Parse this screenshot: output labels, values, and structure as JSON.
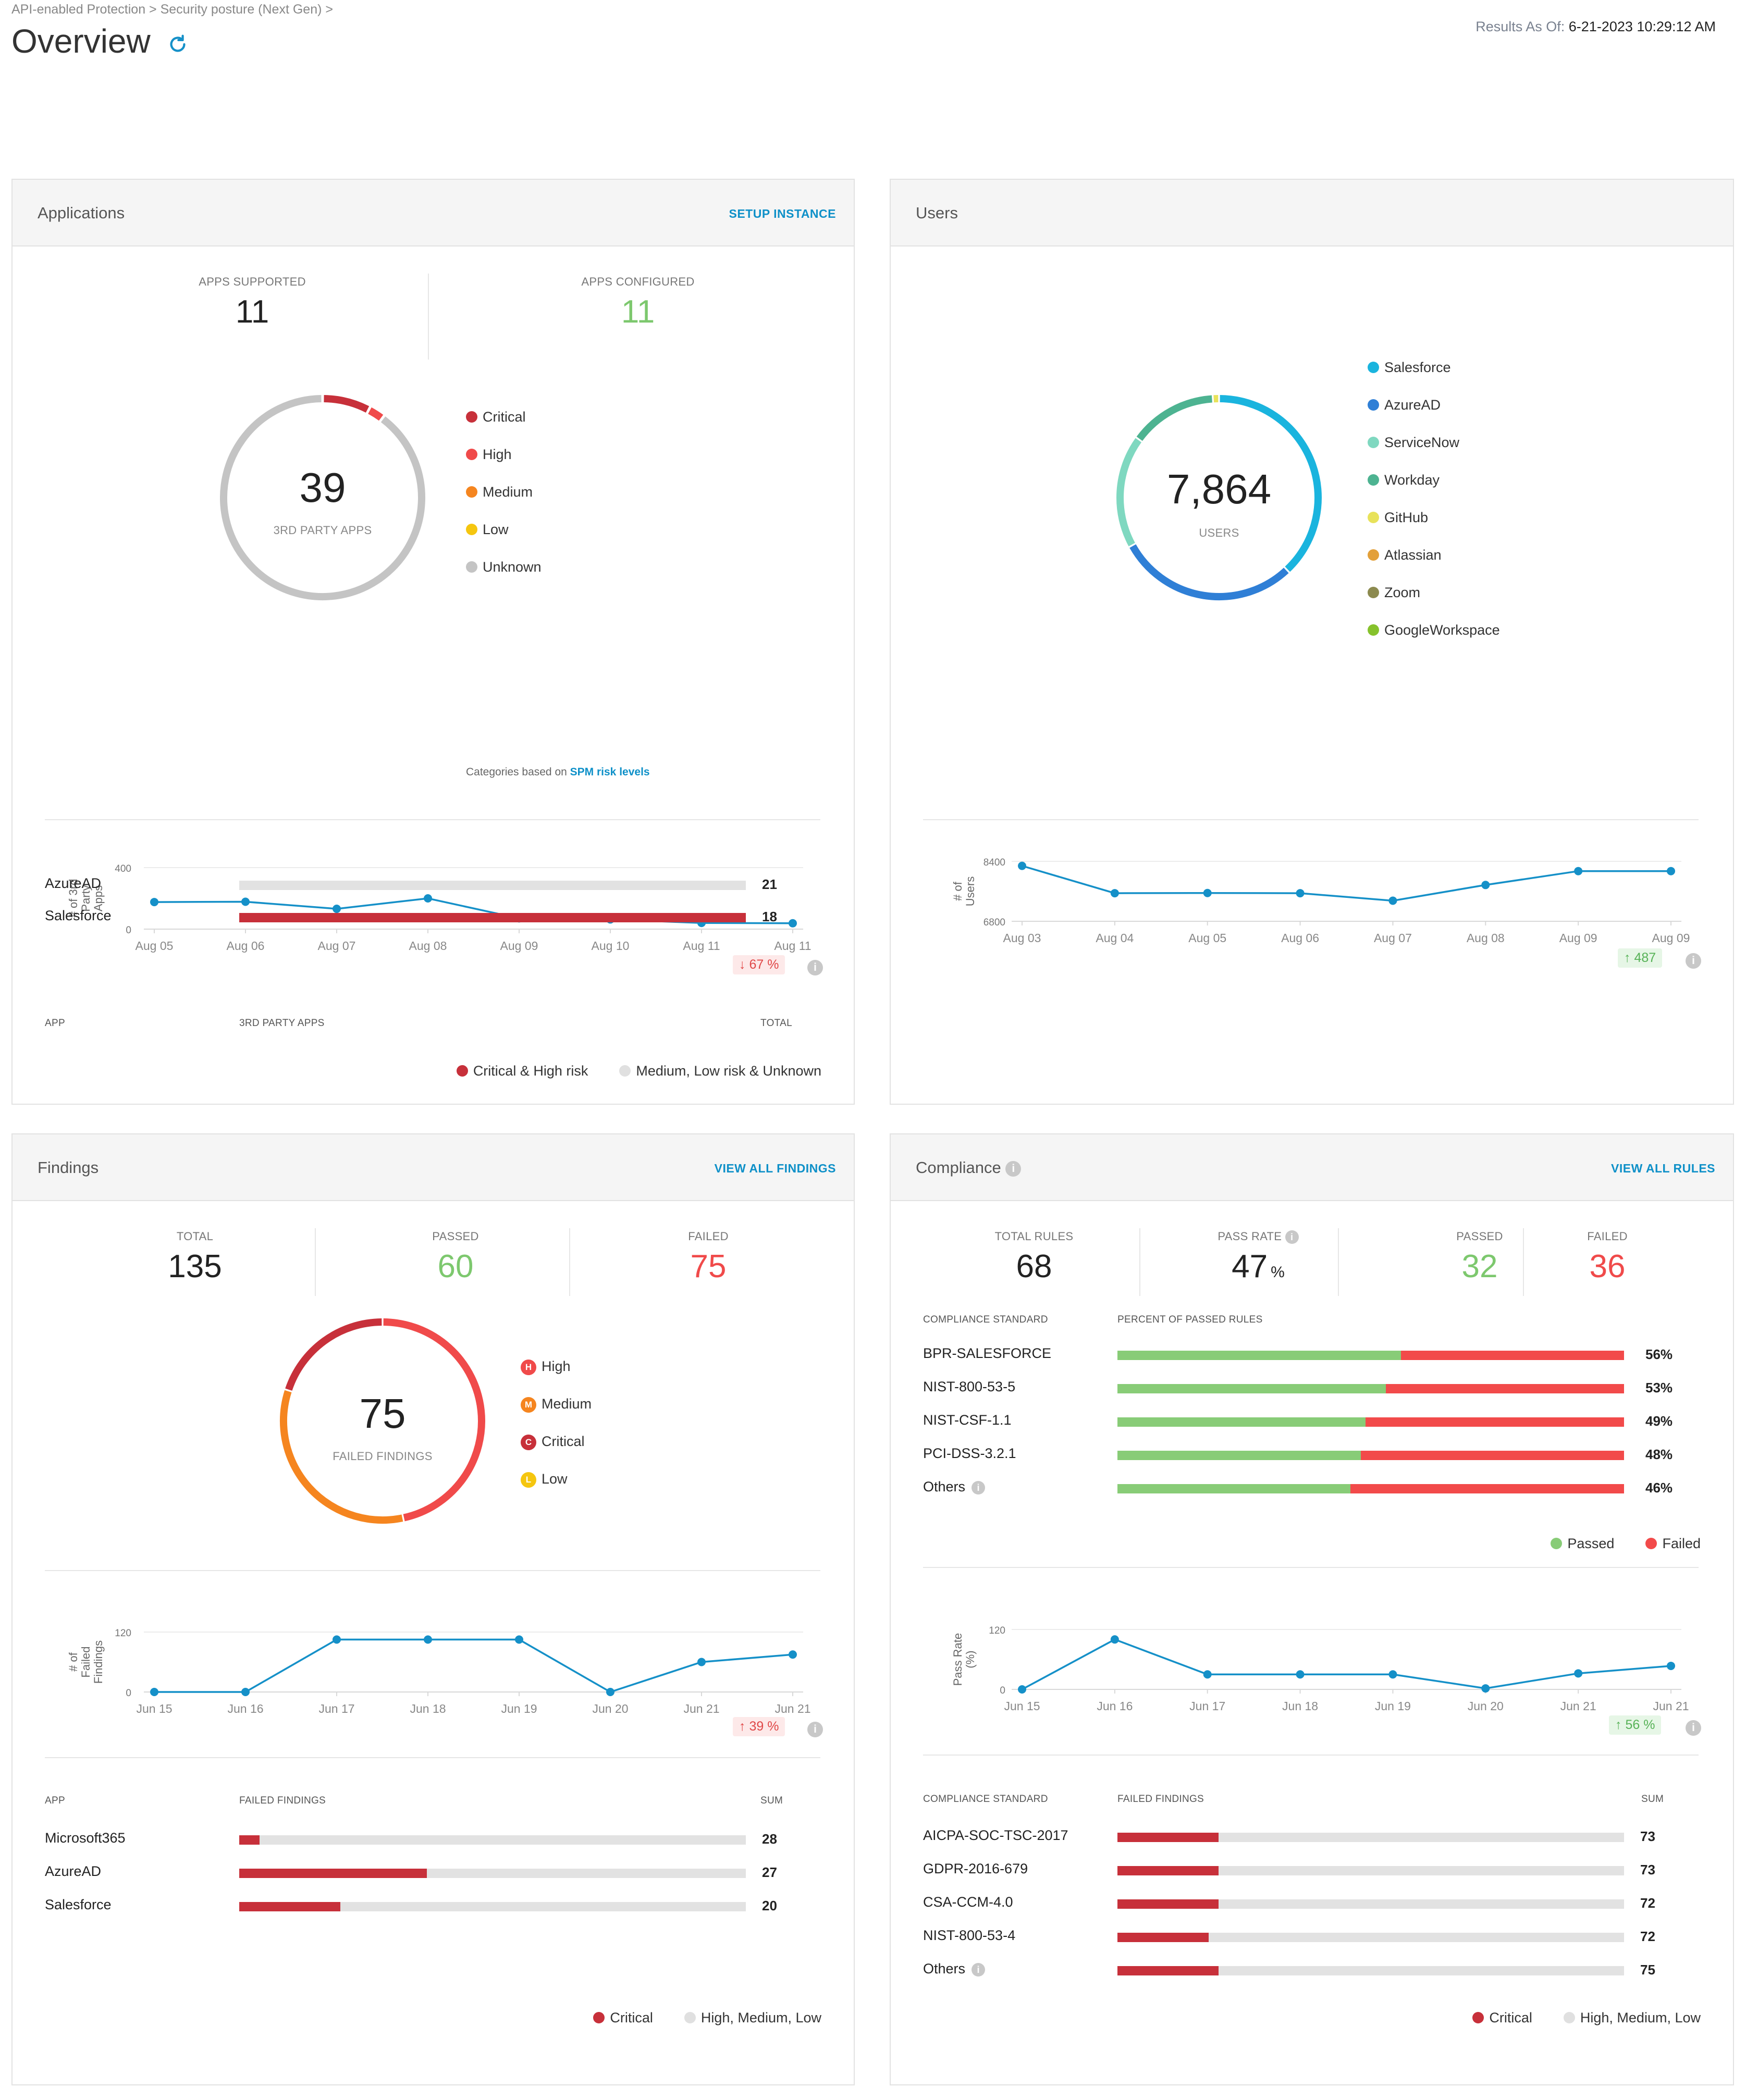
{
  "header": {
    "breadcrumb": "API-enabled Protection > Security posture (Next Gen) >",
    "title": "Overview",
    "results_label": "Results As Of:",
    "results_value": "6-21-2023 10:29:12 AM"
  },
  "applications": {
    "title": "Applications",
    "link": "SETUP INSTANCE",
    "apps_supported_label": "APPS SUPPORTED",
    "apps_supported": "11",
    "apps_configured_label": "APPS CONFIGURED",
    "apps_configured": "11",
    "donut_value": "39",
    "donut_label": "3RD PARTY APPS",
    "donut_segments": [
      {
        "name": "Critical",
        "value": 3,
        "color": "#c7303a"
      },
      {
        "name": "High",
        "value": 1,
        "color": "#f04a4a"
      },
      {
        "name": "Unknown",
        "value": 35,
        "color": "#c4c4c4"
      }
    ],
    "legend": [
      {
        "label": "Critical",
        "color": "#c7303a"
      },
      {
        "label": "High",
        "color": "#f04a4a"
      },
      {
        "label": "Medium",
        "color": "#f5851f"
      },
      {
        "label": "Low",
        "color": "#f5c60f"
      },
      {
        "label": "Unknown",
        "color": "#c4c4c4"
      }
    ],
    "note_prefix": "Categories based on",
    "note_link": "SPM risk levels",
    "chart_data": {
      "type": "line",
      "ylabel": "# of 3rd Party Apps",
      "ylim": [
        0,
        400
      ],
      "yticks": [
        "400",
        "0"
      ],
      "x": [
        "Aug 05",
        "Aug 06",
        "Aug 07",
        "Aug 08",
        "Aug 09",
        "Aug 10",
        "Aug 11",
        "Aug 11"
      ],
      "values": [
        176,
        178,
        132,
        200,
        70,
        63,
        40,
        38
      ]
    },
    "trend": "67 %",
    "table_headers": {
      "app": "APP",
      "bar": "3RD PARTY APPS",
      "total": "TOTAL"
    },
    "rows": [
      {
        "app": "AzureAD",
        "total": "21",
        "fraction": 0
      },
      {
        "app": "Salesforce",
        "total": "18",
        "fraction": 1
      }
    ],
    "footer_legend": [
      {
        "label": "Critical & High risk",
        "color": "#c7303a"
      },
      {
        "label": "Medium, Low risk & Unknown",
        "color": "#e0e0e0"
      }
    ]
  },
  "users": {
    "title": "Users",
    "donut_value": "7,864",
    "donut_label": "USERS",
    "donut_segments": [
      {
        "name": "Salesforce",
        "value": 38,
        "color": "#1ab4de"
      },
      {
        "name": "AzureAD",
        "value": 29,
        "color": "#2f7fd6"
      },
      {
        "name": "ServiceNow",
        "value": 18,
        "color": "#7fd8c0"
      },
      {
        "name": "Workday",
        "value": 14,
        "color": "#4db391"
      },
      {
        "name": "GitHub",
        "value": 1,
        "color": "#e8e25a"
      }
    ],
    "legend": [
      {
        "label": "Salesforce",
        "color": "#1ab4de"
      },
      {
        "label": "AzureAD",
        "color": "#2f7fd6"
      },
      {
        "label": "ServiceNow",
        "color": "#7fd8c0"
      },
      {
        "label": "Workday",
        "color": "#4db391"
      },
      {
        "label": "GitHub",
        "color": "#e8e25a"
      },
      {
        "label": "Atlassian",
        "color": "#e3a03a"
      },
      {
        "label": "Zoom",
        "color": "#8c8a4f"
      },
      {
        "label": "GoogleWorkspace",
        "color": "#86c22c"
      }
    ],
    "chart_data": {
      "type": "line",
      "ylabel": "# of Users",
      "ylim": [
        6800,
        8400
      ],
      "yticks": [
        "8400",
        "6800"
      ],
      "x": [
        "Aug 03",
        "Aug 04",
        "Aug 05",
        "Aug 06",
        "Aug 07",
        "Aug 08",
        "Aug 09",
        "Aug 09"
      ],
      "values": [
        8280,
        7550,
        7555,
        7550,
        7350,
        7770,
        8140,
        8140
      ]
    },
    "trend": "487"
  },
  "findings": {
    "title": "Findings",
    "link": "VIEW ALL FINDINGS",
    "total_label": "TOTAL",
    "total": "135",
    "passed_label": "PASSED",
    "passed": "60",
    "failed_label": "FAILED",
    "failed": "75",
    "donut_value": "75",
    "donut_label": "FAILED FINDINGS",
    "donut_segments": [
      {
        "name": "High",
        "value": 35,
        "color": "#f04a4a"
      },
      {
        "name": "Medium",
        "value": 25,
        "color": "#f5851f"
      },
      {
        "name": "Critical",
        "value": 15,
        "color": "#c7303a"
      }
    ],
    "legend": [
      {
        "label": "High",
        "letter": "H",
        "color": "#f04a4a"
      },
      {
        "label": "Medium",
        "letter": "M",
        "color": "#f5851f"
      },
      {
        "label": "Critical",
        "letter": "C",
        "color": "#c7303a"
      },
      {
        "label": "Low",
        "letter": "L",
        "color": "#f5c60f"
      }
    ],
    "chart_data": {
      "type": "line",
      "ylabel": "# of Failed Findings",
      "ylim": [
        0,
        120
      ],
      "yticks": [
        "120",
        "0"
      ],
      "x": [
        "Jun 15",
        "Jun 16",
        "Jun 17",
        "Jun 18",
        "Jun 19",
        "Jun 20",
        "Jun 21",
        "Jun 21"
      ],
      "values": [
        0,
        0,
        105,
        105,
        105,
        0,
        60,
        75
      ]
    },
    "trend": "39 %",
    "table_headers": {
      "app": "APP",
      "bar": "FAILED FINDINGS",
      "total": "SUM"
    },
    "rows": [
      {
        "app": "Microsoft365",
        "total": "28",
        "fraction": 0.04
      },
      {
        "app": "AzureAD",
        "total": "27",
        "fraction": 0.37
      },
      {
        "app": "Salesforce",
        "total": "20",
        "fraction": 0.2
      }
    ],
    "footer_legend": [
      {
        "label": "Critical",
        "color": "#c7303a"
      },
      {
        "label": "High, Medium, Low",
        "color": "#e0e0e0"
      }
    ]
  },
  "compliance": {
    "title": "Compliance",
    "link": "VIEW ALL RULES",
    "total_label": "TOTAL RULES",
    "total": "68",
    "pass_rate_label": "PASS RATE",
    "pass_rate": "47",
    "pass_rate_unit": "%",
    "passed_label": "PASSED",
    "passed": "32",
    "failed_label": "FAILED",
    "failed": "36",
    "std_headers": {
      "std": "COMPLIANCE STANDARD",
      "bar": "PERCENT OF PASSED RULES"
    },
    "standards": [
      {
        "name": "BPR-SALESFORCE",
        "pct": "56%",
        "value": 0.56
      },
      {
        "name": "NIST-800-53-5",
        "pct": "53%",
        "value": 0.53
      },
      {
        "name": "NIST-CSF-1.1",
        "pct": "49%",
        "value": 0.49
      },
      {
        "name": "PCI-DSS-3.2.1",
        "pct": "48%",
        "value": 0.48
      },
      {
        "name": "Others",
        "pct": "46%",
        "value": 0.46
      }
    ],
    "pf_legend": [
      {
        "label": "Passed",
        "color": "#88cc77"
      },
      {
        "label": "Failed",
        "color": "#f24a4a"
      }
    ],
    "chart_data": {
      "type": "line",
      "ylabel": "Pass Rate (%)",
      "ylim": [
        0,
        120
      ],
      "yticks": [
        "120",
        "0"
      ],
      "x": [
        "Jun 15",
        "Jun 16",
        "Jun 17",
        "Jun 18",
        "Jun 19",
        "Jun 20",
        "Jun 21",
        "Jun 21"
      ],
      "values": [
        0,
        100,
        30,
        30,
        30,
        2,
        32,
        47
      ]
    },
    "trend": "56 %",
    "failed_headers": {
      "std": "COMPLIANCE STANDARD",
      "bar": "FAILED FINDINGS",
      "total": "SUM"
    },
    "failed_rows": [
      {
        "name": "AICPA-SOC-TSC-2017",
        "total": "73",
        "fraction": 0.2
      },
      {
        "name": "GDPR-2016-679",
        "total": "73",
        "fraction": 0.2
      },
      {
        "name": "CSA-CCM-4.0",
        "total": "72",
        "fraction": 0.2
      },
      {
        "name": "NIST-800-53-4",
        "total": "72",
        "fraction": 0.18
      },
      {
        "name": "Others",
        "total": "75",
        "fraction": 0.2
      }
    ],
    "footer_legend": [
      {
        "label": "Critical",
        "color": "#c7303a"
      },
      {
        "label": "High, Medium, Low",
        "color": "#e0e0e0"
      }
    ]
  }
}
